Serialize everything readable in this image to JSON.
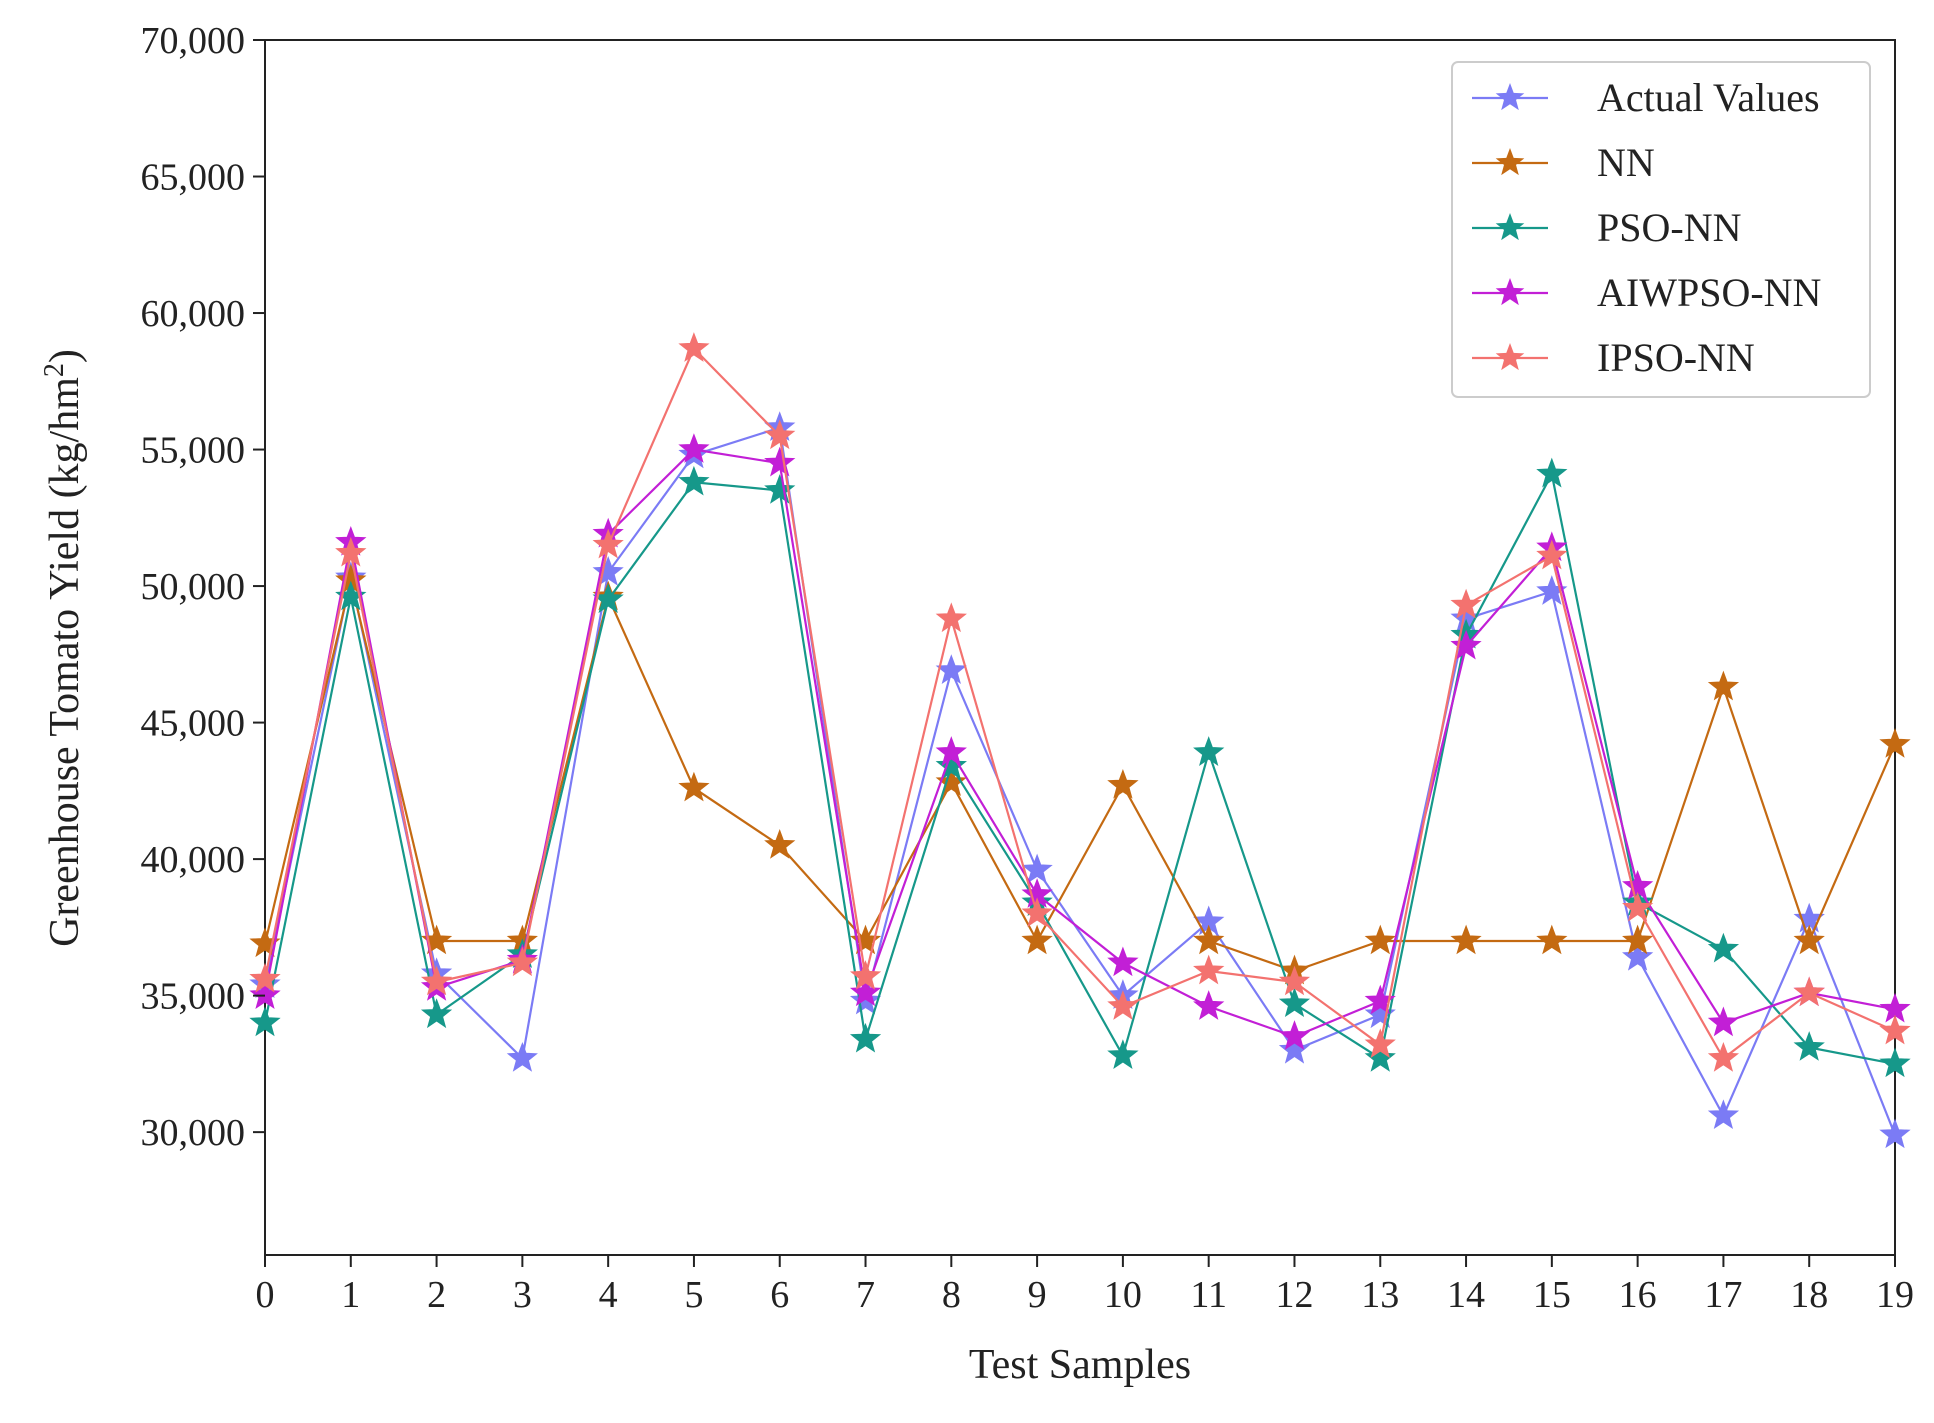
{
  "chart_data": {
    "type": "line",
    "title": "",
    "xlabel": "Test Samples",
    "ylabel": "Greenhouse Tomato Yield (kg/hm",
    "ylabel_sup": "2",
    "ylabel_close": ")",
    "x": [
      0,
      1,
      2,
      3,
      4,
      5,
      6,
      7,
      8,
      9,
      10,
      11,
      12,
      13,
      14,
      15,
      16,
      17,
      18,
      19
    ],
    "xlim": [
      0,
      19
    ],
    "ylim": [
      25500,
      70000
    ],
    "yticks": [
      30000,
      35000,
      40000,
      45000,
      50000,
      55000,
      60000,
      65000,
      70000
    ],
    "ytick_labels": [
      "30,000",
      "35,000",
      "40,000",
      "45,000",
      "50,000",
      "55,000",
      "60,000",
      "65,000",
      "70,000"
    ],
    "xtick_labels": [
      "0",
      "1",
      "2",
      "3",
      "4",
      "5",
      "6",
      "7",
      "8",
      "9",
      "10",
      "11",
      "12",
      "13",
      "14",
      "15",
      "16",
      "17",
      "18",
      "19"
    ],
    "legend_position": "top-right",
    "grid": false,
    "series": [
      {
        "name": "Actual Values",
        "color": "#7b7bf5",
        "values": [
          35400,
          50300,
          35800,
          32700,
          50500,
          54800,
          55800,
          34800,
          46900,
          39600,
          35000,
          37700,
          33000,
          34300,
          48800,
          49800,
          36400,
          30600,
          37800,
          29900
        ]
      },
      {
        "name": "NN",
        "color": "#c46a12",
        "values": [
          36900,
          50200,
          37000,
          37000,
          49600,
          42600,
          40500,
          37000,
          42800,
          37000,
          42700,
          37000,
          35900,
          37000,
          37000,
          37000,
          37000,
          46300,
          37000,
          44200
        ]
      },
      {
        "name": "PSO-NN",
        "color": "#16988a",
        "values": [
          34000,
          49600,
          34300,
          36500,
          49500,
          53800,
          53500,
          33400,
          43400,
          38400,
          32800,
          43900,
          34700,
          32700,
          48200,
          54100,
          38400,
          36700,
          33100,
          32500
        ]
      },
      {
        "name": "AIWPSO-NN",
        "color": "#c21fd6",
        "values": [
          35000,
          51600,
          35300,
          36300,
          51900,
          55000,
          54500,
          35100,
          43900,
          38700,
          36200,
          34600,
          33500,
          34800,
          47800,
          51400,
          39000,
          34000,
          35100,
          34500
        ]
      },
      {
        "name": "IPSO-NN",
        "color": "#f3726f",
        "values": [
          35600,
          51200,
          35500,
          36200,
          51500,
          58700,
          55500,
          35700,
          48800,
          38000,
          34600,
          35900,
          35500,
          33200,
          49300,
          51100,
          38200,
          32700,
          35100,
          33700
        ]
      }
    ]
  }
}
